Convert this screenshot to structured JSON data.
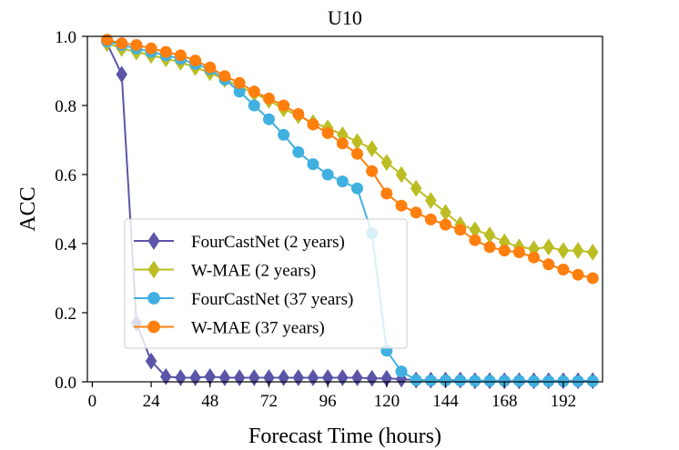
{
  "chart_data": {
    "type": "line",
    "title": "U10",
    "xlabel": "Forecast Time (hours)",
    "ylabel": "ACC",
    "xlim": [
      -2,
      208
    ],
    "ylim": [
      0.0,
      1.0
    ],
    "xticks": [
      0,
      24,
      48,
      72,
      96,
      120,
      144,
      168,
      192
    ],
    "yticks": [
      "0.0",
      "0.2",
      "0.4",
      "0.6",
      "0.8",
      "1.0"
    ],
    "legend_position": "center-left",
    "x": [
      6,
      12,
      18,
      24,
      30,
      36,
      42,
      48,
      54,
      60,
      66,
      72,
      78,
      84,
      90,
      96,
      102,
      108,
      114,
      120,
      126,
      132,
      138,
      144,
      150,
      156,
      162,
      168,
      174,
      180,
      186,
      192,
      198,
      204
    ],
    "series": [
      {
        "name": "FourCastNet (2 years)",
        "color": "#5b55a8",
        "marker": "diamond",
        "values": [
          0.98,
          0.89,
          0.17,
          0.06,
          0.015,
          0.012,
          0.012,
          0.015,
          0.012,
          0.012,
          0.012,
          0.012,
          0.012,
          0.012,
          0.012,
          0.012,
          0.012,
          0.012,
          0.01,
          0.01,
          0.008,
          0.005,
          0.005,
          0.005,
          0.005,
          0.003,
          0.003,
          0.003,
          0.003,
          0.003,
          0.003,
          0.003,
          0.003,
          0.003
        ]
      },
      {
        "name": "W-MAE (2 years)",
        "color": "#bcbd22",
        "marker": "diamond",
        "values": [
          0.98,
          0.965,
          0.955,
          0.945,
          0.935,
          0.925,
          0.91,
          0.895,
          0.875,
          0.855,
          0.835,
          0.815,
          0.79,
          0.77,
          0.75,
          0.735,
          0.715,
          0.695,
          0.675,
          0.635,
          0.6,
          0.56,
          0.525,
          0.49,
          0.455,
          0.44,
          0.425,
          0.405,
          0.39,
          0.385,
          0.39,
          0.38,
          0.38,
          0.375
        ]
      },
      {
        "name": "FourCastNet (37 years)",
        "color": "#40b0e0",
        "marker": "circle",
        "values": [
          0.985,
          0.975,
          0.965,
          0.955,
          0.945,
          0.935,
          0.92,
          0.905,
          0.875,
          0.84,
          0.8,
          0.76,
          0.715,
          0.665,
          0.63,
          0.6,
          0.58,
          0.56,
          0.43,
          0.09,
          0.03,
          0.005,
          0.004,
          0.004,
          0.004,
          0.003,
          0.003,
          0.003,
          0.003,
          0.002,
          0.002,
          0.002,
          0.002,
          0.002
        ]
      },
      {
        "name": "W-MAE (37 years)",
        "color": "#ff7f0e",
        "marker": "circle",
        "values": [
          0.99,
          0.98,
          0.975,
          0.965,
          0.955,
          0.945,
          0.93,
          0.91,
          0.885,
          0.865,
          0.84,
          0.82,
          0.8,
          0.775,
          0.745,
          0.72,
          0.69,
          0.66,
          0.61,
          0.545,
          0.51,
          0.49,
          0.47,
          0.455,
          0.44,
          0.41,
          0.39,
          0.38,
          0.375,
          0.36,
          0.34,
          0.325,
          0.31,
          0.3
        ]
      }
    ]
  }
}
